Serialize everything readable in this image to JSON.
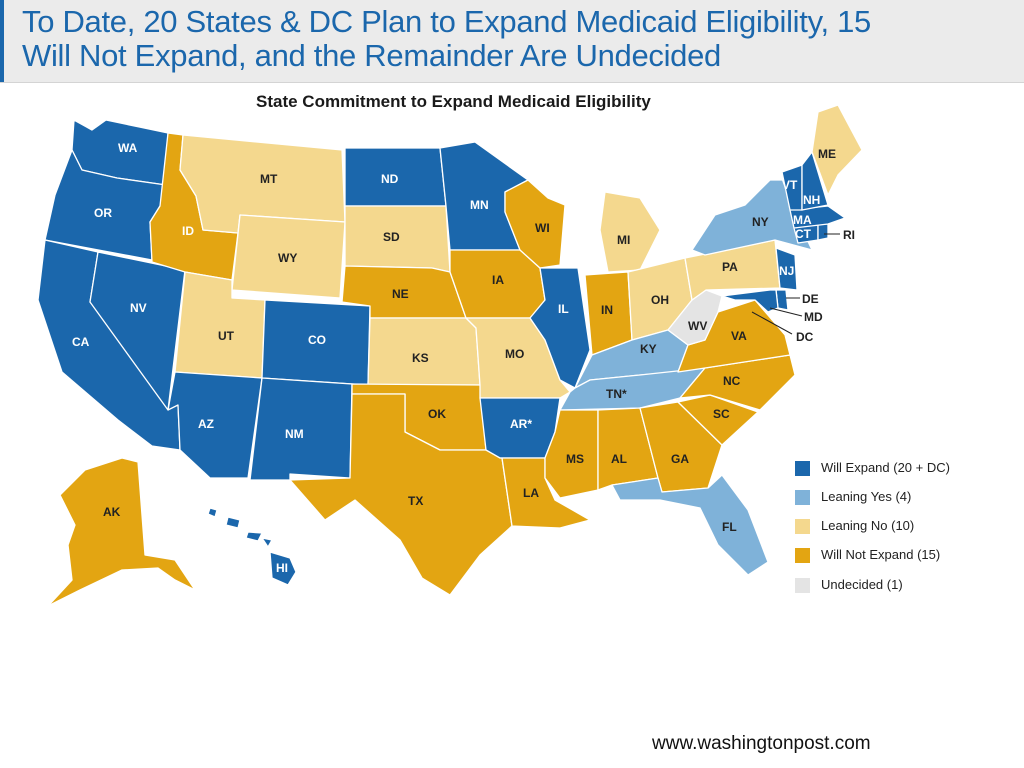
{
  "header": {
    "title_line1": "To Date, 20 States & DC Plan to Expand Medicaid Eligibility, 15",
    "title_line2": "Will Not Expand, and the Remainder Are Undecided"
  },
  "map": {
    "title": "State Commitment to Expand Medicaid Eligibility",
    "colors": {
      "will_expand": "#1b67ac",
      "leaning_yes": "#7fb2d9",
      "leaning_no": "#f4d88e",
      "will_not_expand": "#e3a512",
      "undecided": "#e4e4e4"
    },
    "states": {
      "WA": {
        "label": "WA",
        "category": "will_expand"
      },
      "OR": {
        "label": "OR",
        "category": "will_expand"
      },
      "CA": {
        "label": "CA",
        "category": "will_expand"
      },
      "NV": {
        "label": "NV",
        "category": "will_expand"
      },
      "ID": {
        "label": "ID",
        "category": "will_not_expand"
      },
      "MT": {
        "label": "MT",
        "category": "leaning_no"
      },
      "WY": {
        "label": "WY",
        "category": "leaning_no"
      },
      "UT": {
        "label": "UT",
        "category": "leaning_no"
      },
      "AZ": {
        "label": "AZ",
        "category": "will_expand"
      },
      "CO": {
        "label": "CO",
        "category": "will_expand"
      },
      "NM": {
        "label": "NM",
        "category": "will_expand"
      },
      "ND": {
        "label": "ND",
        "category": "will_expand"
      },
      "SD": {
        "label": "SD",
        "category": "leaning_no"
      },
      "NE": {
        "label": "NE",
        "category": "will_not_expand"
      },
      "KS": {
        "label": "KS",
        "category": "leaning_no"
      },
      "OK": {
        "label": "OK",
        "category": "will_not_expand"
      },
      "TX": {
        "label": "TX",
        "category": "will_not_expand"
      },
      "MN": {
        "label": "MN",
        "category": "will_expand"
      },
      "IA": {
        "label": "IA",
        "category": "will_not_expand"
      },
      "MO": {
        "label": "MO",
        "category": "leaning_no"
      },
      "AR": {
        "label": "AR*",
        "category": "will_expand"
      },
      "LA": {
        "label": "LA",
        "category": "will_not_expand"
      },
      "WI": {
        "label": "WI",
        "category": "will_not_expand"
      },
      "IL": {
        "label": "IL",
        "category": "will_expand"
      },
      "MI": {
        "label": "MI",
        "category": "leaning_no"
      },
      "IN": {
        "label": "IN",
        "category": "will_not_expand"
      },
      "OH": {
        "label": "OH",
        "category": "leaning_no"
      },
      "KY": {
        "label": "KY",
        "category": "leaning_yes"
      },
      "TN": {
        "label": "TN*",
        "category": "leaning_yes"
      },
      "MS": {
        "label": "MS",
        "category": "will_not_expand"
      },
      "AL": {
        "label": "AL",
        "category": "will_not_expand"
      },
      "GA": {
        "label": "GA",
        "category": "will_not_expand"
      },
      "FL": {
        "label": "FL",
        "category": "leaning_yes"
      },
      "SC": {
        "label": "SC",
        "category": "will_not_expand"
      },
      "NC": {
        "label": "NC",
        "category": "will_not_expand"
      },
      "VA": {
        "label": "VA",
        "category": "will_not_expand"
      },
      "WV": {
        "label": "WV",
        "category": "undecided"
      },
      "PA": {
        "label": "PA",
        "category": "leaning_no"
      },
      "NY": {
        "label": "NY",
        "category": "leaning_yes"
      },
      "NJ": {
        "label": "NJ",
        "category": "will_expand"
      },
      "DE": {
        "label": "DE",
        "category": "will_expand"
      },
      "MD": {
        "label": "MD",
        "category": "will_expand"
      },
      "DC": {
        "label": "DC",
        "category": "will_expand"
      },
      "CT": {
        "label": "CT",
        "category": "will_expand"
      },
      "RI": {
        "label": "RI",
        "category": "will_expand"
      },
      "MA": {
        "label": "MA",
        "category": "will_expand"
      },
      "VT": {
        "label": "VT",
        "category": "will_expand"
      },
      "NH": {
        "label": "NH",
        "category": "will_expand"
      },
      "ME": {
        "label": "ME",
        "category": "leaning_no"
      },
      "AK": {
        "label": "AK",
        "category": "will_not_expand"
      },
      "HI": {
        "label": "HI",
        "category": "will_expand"
      }
    },
    "legend": [
      {
        "label": "Will Expand (20 + DC)",
        "color": "#1b67ac"
      },
      {
        "label": "Leaning Yes (4)",
        "color": "#7fb2d9"
      },
      {
        "label": "Leaning No (10)",
        "color": "#f4d88e"
      },
      {
        "label": "Will Not Expand (15)",
        "color": "#e3a512"
      },
      {
        "label": "Undecided (1)",
        "color": "#e4e4e4"
      }
    ]
  },
  "footer": {
    "source": "www.washingtonpost.com"
  }
}
